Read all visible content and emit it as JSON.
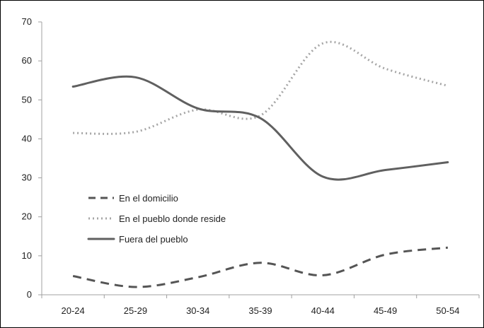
{
  "chart_data": {
    "type": "line",
    "categories": [
      "20-24",
      "25-29",
      "30-34",
      "35-39",
      "40-44",
      "45-49",
      "50-54"
    ],
    "ylim": [
      0,
      70
    ],
    "yticks": [
      0,
      10,
      20,
      30,
      40,
      50,
      60,
      70
    ],
    "grid": false,
    "legend": "inside-lower-left",
    "series": [
      {
        "name": "En el domicilio",
        "values": [
          4.8,
          2.0,
          4.5,
          8.2,
          5.0,
          10.3,
          12.1
        ],
        "color": "#555555",
        "style": "dashed"
      },
      {
        "name": "En el pueblo donde reside",
        "values": [
          41.5,
          41.8,
          47.5,
          46.0,
          64.5,
          58.0,
          53.6
        ],
        "color": "#a6a6a6",
        "style": "dotted"
      },
      {
        "name": "Fuera del pueblo",
        "values": [
          53.4,
          55.8,
          47.8,
          45.3,
          30.3,
          32.0,
          34.0
        ],
        "color": "#606060",
        "style": "solid"
      }
    ]
  }
}
